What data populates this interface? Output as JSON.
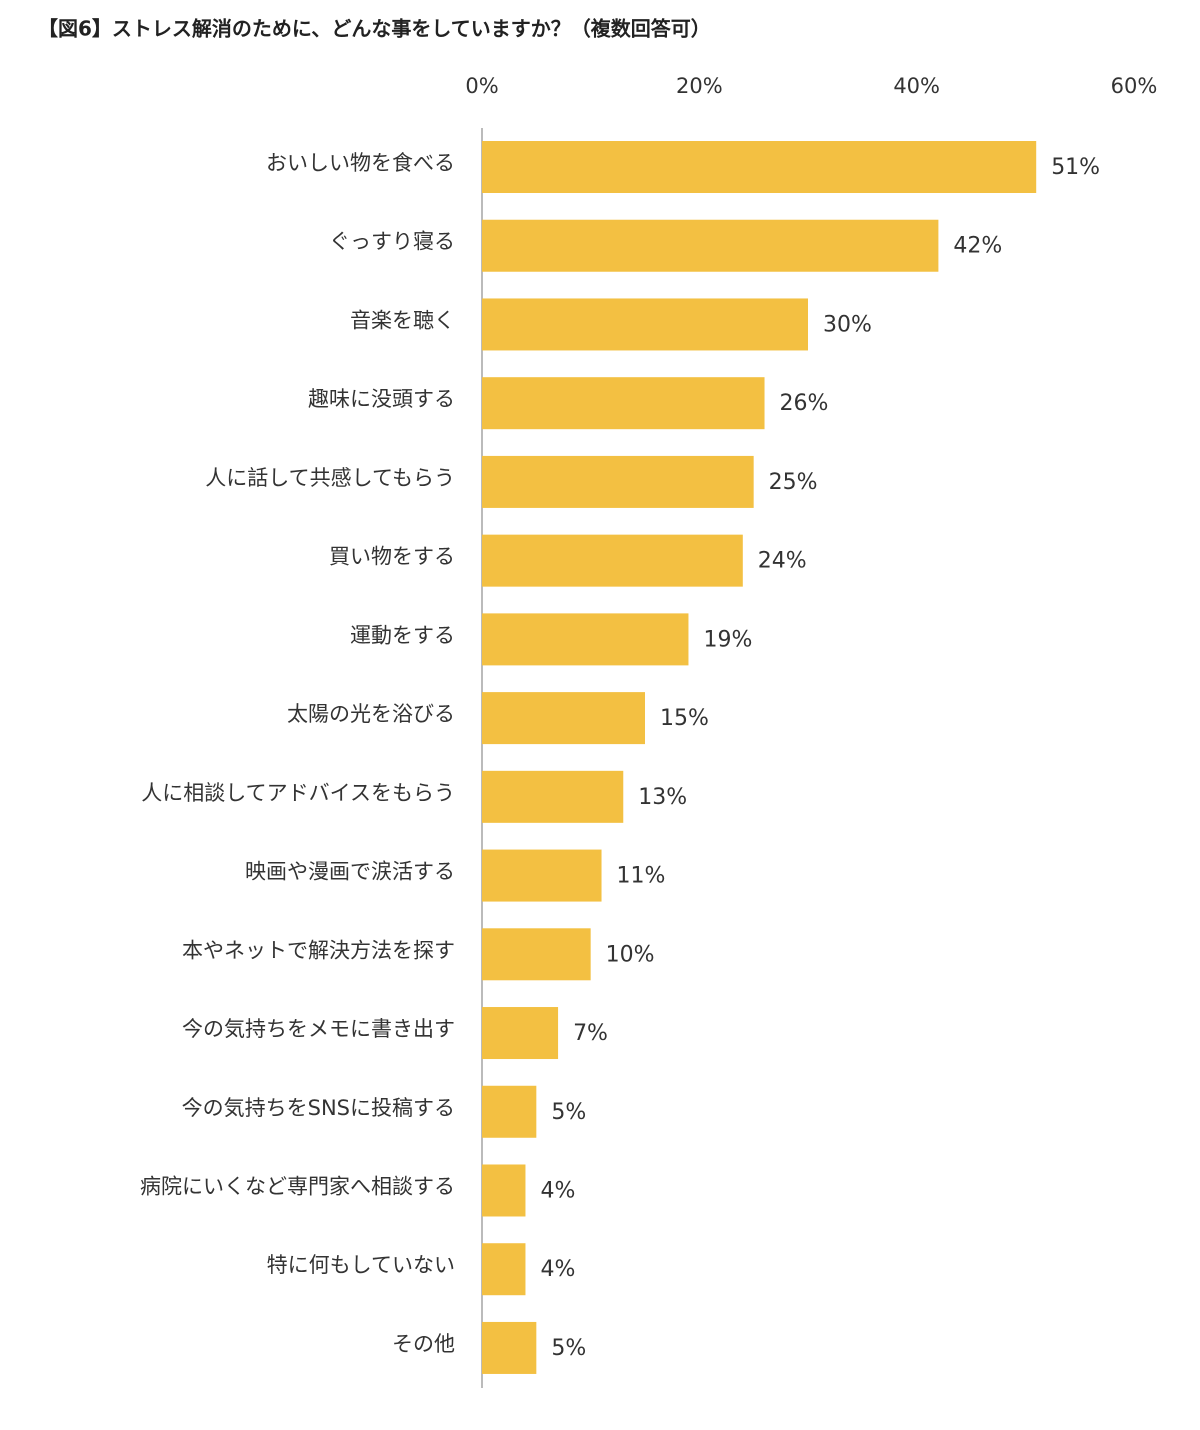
{
  "chart_data": {
    "type": "hbar",
    "title": "【図6】ストレス解消のために、どんな事をしていますか？（複数回答可）",
    "categories": [
      "おいしい物を食べる",
      "ぐっすり寝る",
      "音楽を聴く",
      "趣味に没頭する",
      "人に話して共感してもらう",
      "買い物をする",
      "運動をする",
      "太陽の光を浴びる",
      "人に相談してアドバイスをもらう",
      "映画や漫画で涙活する",
      "本やネットで解決方法を探す",
      "今の気持ちをメモに書き出す",
      "今の気持ちをSNSに投稿する",
      "病院にいくなど専門家へ相談する",
      "特に何もしていない",
      "その他"
    ],
    "values": [
      51,
      42,
      30,
      26,
      25,
      24,
      19,
      15,
      13,
      11,
      10,
      7,
      5,
      4,
      4,
      5
    ],
    "value_labels": [
      "51%",
      "42%",
      "30%",
      "26%",
      "25%",
      "24%",
      "19%",
      "15%",
      "13%",
      "11%",
      "10%",
      "7%",
      "5%",
      "4%",
      "4%",
      "5%"
    ],
    "color": "#f3c042",
    "xlim": [
      0,
      60
    ],
    "xticks": [
      {
        "value": 0,
        "label": "0%"
      },
      {
        "value": 20,
        "label": "20%"
      },
      {
        "value": 40,
        "label": "40%"
      },
      {
        "value": 60,
        "label": "60%"
      }
    ],
    "grid": false
  }
}
